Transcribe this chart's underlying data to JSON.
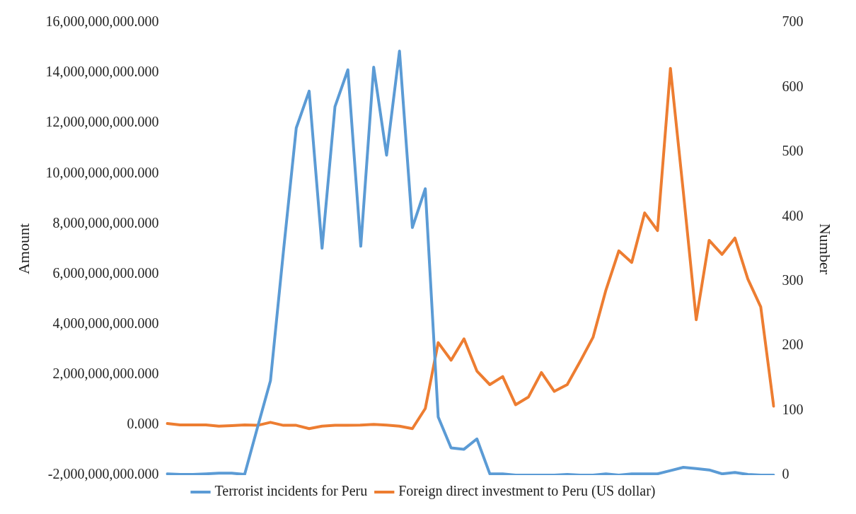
{
  "chart_data": {
    "type": "line",
    "ylabel": "Amount",
    "y2label": "Number",
    "categories": [
      null,
      null,
      null,
      null,
      null,
      null,
      null,
      null,
      null,
      null,
      null,
      null,
      null,
      null,
      null,
      null,
      null,
      null,
      null,
      null,
      null,
      null,
      null,
      null,
      null,
      null,
      null,
      null,
      null,
      null,
      null,
      null,
      null,
      null,
      null,
      null,
      null,
      null,
      null,
      null,
      null,
      null,
      null,
      null,
      null,
      null,
      null,
      null
    ],
    "series": [
      {
        "name": "Terrorist incidents for Peru",
        "color": "#5b9bd5",
        "axis": "y2",
        "values": [
          2,
          1,
          1,
          2,
          3,
          3,
          1,
          74,
          146,
          345,
          537,
          594,
          351,
          570,
          627,
          354,
          631,
          495,
          656,
          383,
          443,
          90,
          42,
          40,
          56,
          2,
          2,
          0,
          0,
          0,
          0,
          1,
          0,
          0,
          2,
          0,
          2,
          2,
          2,
          7,
          12,
          10,
          8,
          2,
          4,
          1,
          0,
          0
        ]
      },
      {
        "name": "Foreign direct investment to Peru (US dollar)",
        "color": "#ed7d31",
        "axis": "y",
        "values": [
          50000000,
          0,
          0,
          0,
          -50000000,
          -30000000,
          0,
          -20000000,
          100000000,
          -20000000,
          -20000000,
          -150000000,
          -50000000,
          -20000000,
          -20000000,
          -10000000,
          20000000,
          -10000000,
          -50000000,
          -150000000,
          650000000,
          3270000000,
          2570000000,
          3420000000,
          2140000000,
          1600000000,
          1920000000,
          800000000,
          1110000000,
          2080000000,
          1330000000,
          1600000000,
          2520000000,
          3480000000,
          5360000000,
          6920000000,
          6460000000,
          8430000000,
          7730000000,
          14180000000,
          9260000000,
          4180000000,
          7340000000,
          6780000000,
          7430000000,
          5800000000,
          4690000000,
          740000000
        ]
      }
    ],
    "ylim": [
      -2000000000,
      16000000000
    ],
    "yticks": [
      {
        "value": -2000000000,
        "label": "-2,000,000,000.000"
      },
      {
        "value": 0,
        "label": "0.000"
      },
      {
        "value": 2000000000,
        "label": "2,000,000,000.000"
      },
      {
        "value": 4000000000,
        "label": "4,000,000,000.000"
      },
      {
        "value": 6000000000,
        "label": "6,000,000,000.000"
      },
      {
        "value": 8000000000,
        "label": "8,000,000,000.000"
      },
      {
        "value": 10000000000,
        "label": "10,000,000,000.000"
      },
      {
        "value": 12000000000,
        "label": "12,000,000,000.000"
      },
      {
        "value": 14000000000,
        "label": "14,000,000,000.000"
      },
      {
        "value": 16000000000,
        "label": "16,000,000,000.000"
      }
    ],
    "y2lim": [
      0,
      700
    ],
    "y2ticks": [
      0,
      100,
      200,
      300,
      400,
      500,
      600,
      700
    ],
    "grid": false,
    "legend": "bottom",
    "marker": "none",
    "line_style": "solid"
  }
}
